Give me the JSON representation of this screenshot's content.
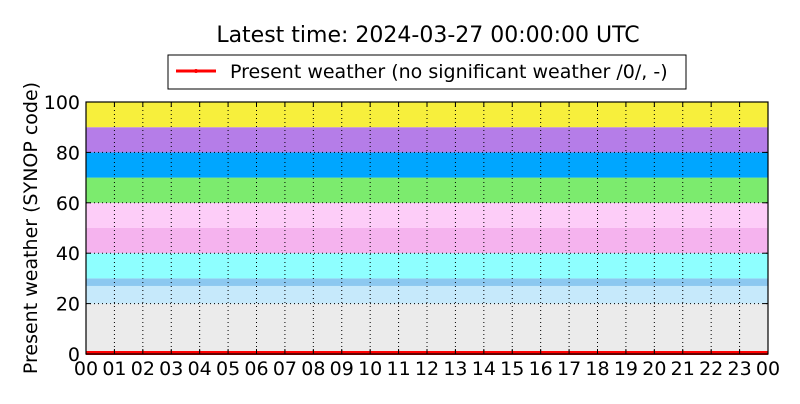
{
  "chart_data": {
    "type": "line",
    "title": "Latest time: 2024-03-27 00:00:00 UTC",
    "ylabel": "Present weather (SYNOP code)",
    "xlabel": "",
    "ylim": [
      0,
      100
    ],
    "yticks": [
      "0",
      "20",
      "40",
      "60",
      "80",
      "100"
    ],
    "xticks": [
      "00",
      "01",
      "02",
      "03",
      "04",
      "05",
      "06",
      "07",
      "08",
      "09",
      "10",
      "11",
      "12",
      "13",
      "14",
      "15",
      "16",
      "17",
      "18",
      "19",
      "20",
      "21",
      "22",
      "23",
      "00"
    ],
    "grid": true,
    "legend_position": "top-center",
    "bands": [
      {
        "from": 0,
        "to": 20,
        "color": "#ebebeb"
      },
      {
        "from": 20,
        "to": 27,
        "color": "#c6e9fb"
      },
      {
        "from": 27,
        "to": 30,
        "color": "#8cc8f0"
      },
      {
        "from": 30,
        "to": 40,
        "color": "#8effff"
      },
      {
        "from": 40,
        "to": 50,
        "color": "#f5b3ee"
      },
      {
        "from": 50,
        "to": 60,
        "color": "#fdcdf8"
      },
      {
        "from": 60,
        "to": 70,
        "color": "#7ceb6e"
      },
      {
        "from": 70,
        "to": 80,
        "color": "#00a6ff"
      },
      {
        "from": 80,
        "to": 90,
        "color": "#b57de8"
      },
      {
        "from": 90,
        "to": 100,
        "color": "#f7ef3c"
      }
    ],
    "series": [
      {
        "name": "Present weather (no significant weather /0/, -)",
        "color": "#ff0000",
        "x": [
          0,
          24
        ],
        "values": [
          0,
          0
        ]
      }
    ]
  }
}
